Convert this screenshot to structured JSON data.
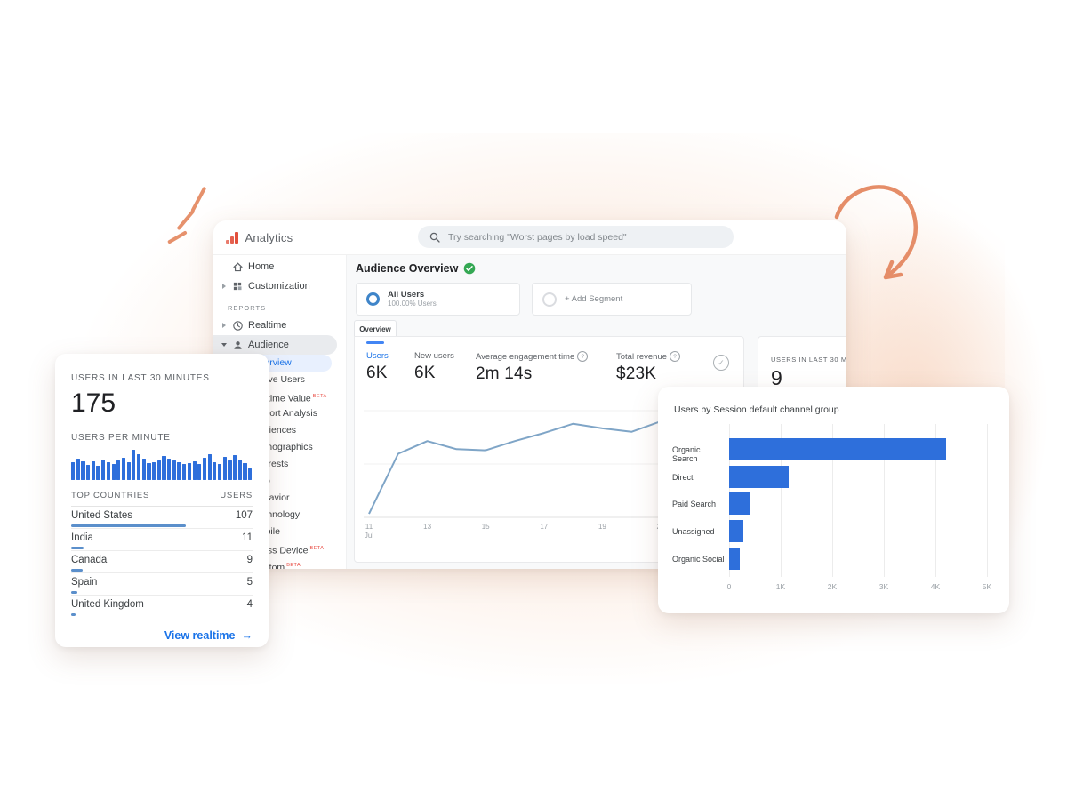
{
  "colors": {
    "accent_blue": "#1a73e8",
    "chart_bar_blue": "#2e6fdb",
    "line_blue": "#7fa5c7",
    "country_bar_blue": "#5b8fcb",
    "decor_orange": "#e6916c",
    "logo_red": "#e2503c",
    "beta_red": "#e8453c"
  },
  "window": {
    "brand": "Analytics",
    "search": {
      "placeholder": "Try searching \"Worst pages by load speed\""
    },
    "sidebar": {
      "items": [
        {
          "label": "Home",
          "icon": "home-icon"
        },
        {
          "label": "Customization",
          "icon": "grid-icon",
          "caret": "right"
        },
        {
          "section": "REPORTS"
        },
        {
          "label": "Realtime",
          "icon": "clock-icon",
          "caret": "right"
        },
        {
          "label": "Audience",
          "icon": "person-icon",
          "caret": "down",
          "active": true
        }
      ],
      "audience_children": [
        {
          "label": "Overview",
          "active": true
        },
        {
          "label": "Active Users"
        },
        {
          "label": "Lifetime Value",
          "beta": true
        },
        {
          "label": "Cohort Analysis"
        },
        {
          "label": "Audiences"
        },
        {
          "label": "Demographics"
        },
        {
          "label": "Interests"
        },
        {
          "label": "Geo"
        },
        {
          "label": "Behavior"
        },
        {
          "label": "Technology"
        },
        {
          "label": "Mobile"
        },
        {
          "label": "Cross Device",
          "beta": true
        },
        {
          "label": "Custom",
          "beta": true
        },
        {
          "label": "Users Flow"
        }
      ]
    },
    "header": {
      "title": "Audience Overview"
    },
    "segments": {
      "all_users": {
        "title": "All Users",
        "subtitle": "100.00% Users"
      },
      "add_segment": {
        "label": "+ Add Segment"
      }
    },
    "tab_label": "Overview",
    "stats": [
      {
        "label": "Users",
        "value": "6K",
        "active": true
      },
      {
        "label": "New users",
        "value": "6K"
      },
      {
        "label": "Average engagement time",
        "value": "2m 14s",
        "help": true
      },
      {
        "label": "Total revenue",
        "value": "$23K",
        "help": true
      }
    ],
    "mini_panel": {
      "title": "USERS IN LAST 30 MIN",
      "value": "9"
    }
  },
  "left_card": {
    "title": "USERS IN LAST 30 MINUTES",
    "value": "175",
    "per_minute_title": "USERS PER MINUTE",
    "table": {
      "col_country": "TOP COUNTRIES",
      "col_users": "USERS",
      "rows": [
        {
          "name": "United States",
          "users": "107",
          "bar_pct": 63
        },
        {
          "name": "India",
          "users": "11",
          "bar_pct": 7
        },
        {
          "name": "Canada",
          "users": "9",
          "bar_pct": 6.5
        },
        {
          "name": "Spain",
          "users": "5",
          "bar_pct": 3.5
        },
        {
          "name": "United Kingdom",
          "users": "4",
          "bar_pct": 2.5
        }
      ]
    },
    "link": {
      "label": "View realtime",
      "arrow": "→"
    }
  },
  "right_card": {
    "title": "Users by Session default channel group"
  },
  "chart_data": [
    {
      "type": "line",
      "title": "Audience Overview users trend",
      "x_tick_labels": [
        "11",
        "13",
        "15",
        "17",
        "19",
        "21"
      ],
      "x_first_tick_sub": "Jul",
      "y_axis": "unlabeled",
      "ylim": [
        0,
        100
      ],
      "values": [
        3,
        55,
        66,
        59,
        58,
        66,
        73,
        81,
        77,
        74,
        83,
        79,
        76,
        85
      ],
      "line_color": "#7fa5c7"
    },
    {
      "type": "bar",
      "orientation": "horizontal",
      "title": "Users by Session default channel group",
      "categories": [
        "Organic Search",
        "Direct",
        "Paid Search",
        "Unassigned",
        "Organic Social"
      ],
      "values": [
        4200,
        1150,
        400,
        280,
        200
      ],
      "xlim": [
        0,
        5000
      ],
      "x_tick_labels": [
        "0",
        "1K",
        "2K",
        "3K",
        "4K",
        "5K"
      ],
      "bar_color": "#2e6fdb"
    },
    {
      "type": "bar",
      "title": "Users per minute",
      "ylim": [
        0,
        100
      ],
      "values": [
        58,
        72,
        62,
        50,
        62,
        46,
        68,
        58,
        52,
        64,
        74,
        60,
        100,
        84,
        70,
        56,
        60,
        64,
        80,
        72,
        64,
        58,
        52,
        56,
        62,
        54,
        74,
        86,
        60,
        54,
        76,
        66,
        82,
        68,
        56,
        38
      ],
      "bar_color": "#2e6fdb"
    },
    {
      "type": "table",
      "title": "Top countries by users (last 30 minutes)",
      "columns": [
        "TOP COUNTRIES",
        "USERS"
      ],
      "rows": [
        [
          "United States",
          107
        ],
        [
          "India",
          11
        ],
        [
          "Canada",
          9
        ],
        [
          "Spain",
          5
        ],
        [
          "United Kingdom",
          4
        ]
      ]
    }
  ]
}
